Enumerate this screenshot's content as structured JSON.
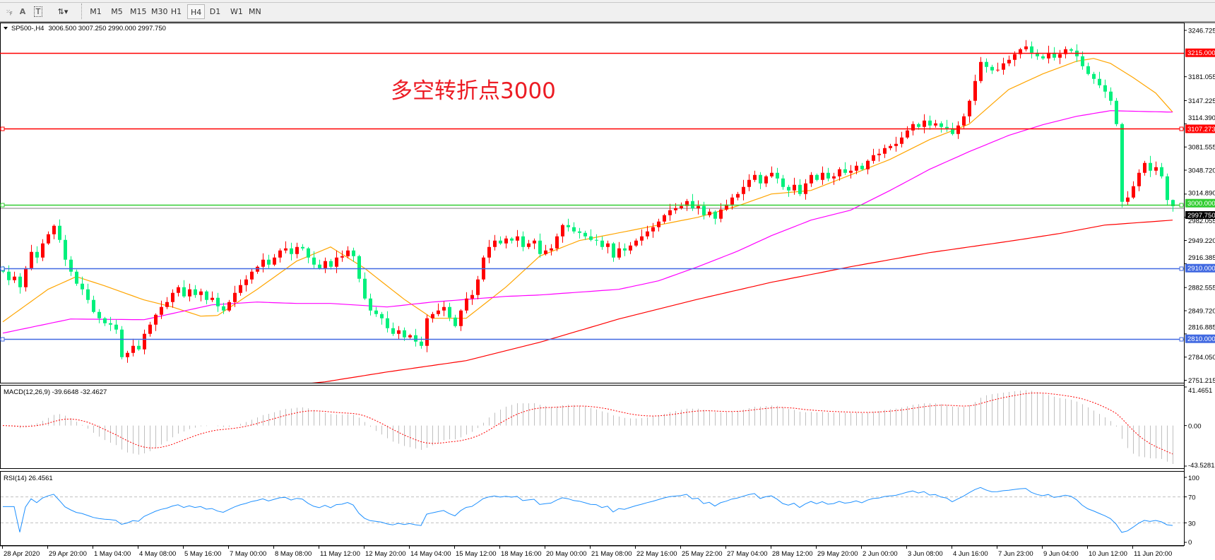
{
  "toolbar": {
    "tools": [
      {
        "name": "grid-tool",
        "label": "F"
      },
      {
        "name": "text-tool",
        "label": "A"
      },
      {
        "name": "text-label-tool",
        "label": "T"
      },
      {
        "name": "arrows-tool",
        "label": "▾"
      }
    ],
    "timeframes": [
      "M1",
      "M5",
      "M15",
      "M30",
      "H1",
      "H4",
      "D1",
      "W1",
      "MN"
    ],
    "active_timeframe": "H4"
  },
  "chart_header": {
    "symbol": "SP500-,H4",
    "ohlc_text": "3006.500 3007.250 2990.000 2997.750"
  },
  "annotation_text": "多空转折点3000",
  "chart_data": {
    "type": "candlestick",
    "symbol": "SP500-",
    "timeframe": "H4",
    "colors": {
      "up": "#ff0000",
      "down": "#00f07c",
      "ma_fast": "#ffa500",
      "ma_mid": "#ff00ff",
      "ma_slow": "#ff0000",
      "macd_hist": "#c0c0c0",
      "macd_signal": "#ff0000",
      "rsi": "#1e90ff"
    },
    "last_bar": {
      "open": 3006.5,
      "high": 3007.25,
      "low": 2990.0,
      "close": 2997.75
    },
    "close": [
      2905,
      2893,
      2898,
      2883,
      2910,
      2933,
      2925,
      2945,
      2958,
      2970,
      2950,
      2922,
      2905,
      2888,
      2880,
      2865,
      2848,
      2839,
      2832,
      2830,
      2823,
      2784,
      2790,
      2800,
      2795,
      2817,
      2830,
      2844,
      2855,
      2862,
      2875,
      2883,
      2870,
      2880,
      2872,
      2877,
      2865,
      2868,
      2856,
      2850,
      2862,
      2875,
      2886,
      2894,
      2905,
      2912,
      2922,
      2915,
      2925,
      2935,
      2938,
      2930,
      2940,
      2938,
      2925,
      2915,
      2910,
      2920,
      2912,
      2925,
      2927,
      2935,
      2927,
      2895,
      2867,
      2850,
      2845,
      2839,
      2825,
      2817,
      2822,
      2812,
      2815,
      2806,
      2800,
      2839,
      2845,
      2850,
      2855,
      2840,
      2828,
      2850,
      2867,
      2872,
      2894,
      2925,
      2940,
      2949,
      2945,
      2952,
      2949,
      2955,
      2940,
      2945,
      2949,
      2930,
      2935,
      2938,
      2955,
      2971,
      2968,
      2962,
      2960,
      2955,
      2950,
      2949,
      2940,
      2945,
      2925,
      2938,
      2935,
      2942,
      2949,
      2955,
      2962,
      2968,
      2976,
      2985,
      2992,
      2995,
      2998,
      3005,
      2995,
      2998,
      2985,
      2990,
      2980,
      2993,
      3000,
      3010,
      3015,
      3025,
      3035,
      3042,
      3030,
      3040,
      3045,
      3037,
      3025,
      3020,
      3028,
      3015,
      3030,
      3042,
      3035,
      3045,
      3037,
      3040,
      3050,
      3045,
      3048,
      3055,
      3050,
      3062,
      3070,
      3072,
      3080,
      3083,
      3086,
      3095,
      3105,
      3114,
      3110,
      3119,
      3112,
      3115,
      3110,
      3108,
      3100,
      3112,
      3125,
      3147,
      3175,
      3202,
      3195,
      3190,
      3191,
      3200,
      3205,
      3213,
      3220,
      3224,
      3215,
      3210,
      3207,
      3215,
      3208,
      3213,
      3220,
      3218,
      3210,
      3196,
      3185,
      3178,
      3169,
      3160,
      3147,
      3114,
      3004,
      3010,
      3026,
      3045,
      3059,
      3048,
      3053,
      3040,
      3006.5,
      2997.75
    ],
    "moving_averages": [
      {
        "color": "#ffa500",
        "points": [
          [
            0,
            2834
          ],
          [
            8,
            2880
          ],
          [
            13,
            2898
          ],
          [
            18,
            2885
          ],
          [
            25,
            2865
          ],
          [
            30,
            2855
          ],
          [
            35,
            2842
          ],
          [
            38,
            2843
          ],
          [
            45,
            2880
          ],
          [
            52,
            2920
          ],
          [
            58,
            2940
          ],
          [
            64,
            2910
          ],
          [
            71,
            2866
          ],
          [
            76,
            2839
          ],
          [
            82,
            2839
          ],
          [
            89,
            2883
          ],
          [
            95,
            2927
          ],
          [
            102,
            2949
          ],
          [
            109,
            2960
          ],
          [
            116,
            2971
          ],
          [
            123,
            2982
          ],
          [
            130,
            2998
          ],
          [
            136,
            3015
          ],
          [
            143,
            3020
          ],
          [
            150,
            3042
          ],
          [
            157,
            3064
          ],
          [
            164,
            3092
          ],
          [
            171,
            3114
          ],
          [
            178,
            3163
          ],
          [
            184,
            3185
          ],
          [
            190,
            3203
          ],
          [
            193,
            3207
          ],
          [
            196,
            3200
          ],
          [
            200,
            3180
          ],
          [
            204,
            3158
          ],
          [
            207,
            3131
          ]
        ]
      },
      {
        "color": "#ff00ff",
        "points": [
          [
            0,
            2818
          ],
          [
            12,
            2838
          ],
          [
            25,
            2837
          ],
          [
            37,
            2858
          ],
          [
            45,
            2862
          ],
          [
            52,
            2860
          ],
          [
            58,
            2860
          ],
          [
            68,
            2855
          ],
          [
            76,
            2862
          ],
          [
            89,
            2870
          ],
          [
            95,
            2872
          ],
          [
            109,
            2880
          ],
          [
            116,
            2892
          ],
          [
            123,
            2912
          ],
          [
            130,
            2934
          ],
          [
            136,
            2956
          ],
          [
            143,
            2978
          ],
          [
            150,
            2992
          ],
          [
            157,
            3020
          ],
          [
            164,
            3050
          ],
          [
            171,
            3075
          ],
          [
            178,
            3098
          ],
          [
            184,
            3113
          ],
          [
            190,
            3125
          ],
          [
            196,
            3133
          ],
          [
            201,
            3132
          ],
          [
            207,
            3131
          ]
        ]
      },
      {
        "color": "#ff0000",
        "points": [
          [
            52,
            2745
          ],
          [
            57,
            2749
          ],
          [
            68,
            2763
          ],
          [
            82,
            2779
          ],
          [
            95,
            2805
          ],
          [
            109,
            2838
          ],
          [
            123,
            2866
          ],
          [
            136,
            2890
          ],
          [
            150,
            2912
          ],
          [
            164,
            2932
          ],
          [
            178,
            2948
          ],
          [
            187,
            2959
          ],
          [
            195,
            2971
          ],
          [
            207,
            2978
          ]
        ]
      }
    ],
    "horizontal_levels": [
      {
        "price": 3215.0,
        "label": "3215.000",
        "color": "#ff0000"
      },
      {
        "price": 3107.273,
        "label": "3107.273",
        "color": "#ff0000"
      },
      {
        "price": 3000.0,
        "label": "3000.000",
        "color": "#32cd32"
      },
      {
        "price": 2910.0,
        "label": "2910.000",
        "color": "#4169e1"
      },
      {
        "price": 2810.0,
        "label": "2810.000",
        "color": "#4169e1"
      }
    ],
    "bid_line": {
      "price": 2997.75,
      "label": "2997.750"
    },
    "price_axis": {
      "ticks": [
        "3246.725",
        "3181.055",
        "3147.225",
        "3114.390",
        "3081.555",
        "3048.720",
        "3014.890",
        "2982.055",
        "2949.220",
        "2916.385",
        "2882.555",
        "2849.720",
        "2816.885",
        "2784.050",
        "2751.215"
      ],
      "range": [
        2751.215,
        3246.725
      ]
    },
    "time_axis": {
      "labels": [
        "28 Apr 2020",
        "29 Apr 20:00",
        "1 May 04:00",
        "4 May 08:00",
        "5 May 16:00",
        "7 May 00:00",
        "8 May 08:00",
        "11 May 12:00",
        "12 May 20:00",
        "14 May 04:00",
        "15 May 12:00",
        "18 May 16:00",
        "20 May 00:00",
        "21 May 08:00",
        "22 May 16:00",
        "25 May 22:00",
        "27 May 04:00",
        "28 May 12:00",
        "29 May 20:00",
        "2 Jun 00:00",
        "3 Jun 08:00",
        "4 Jun 16:00",
        "7 Jun 23:00",
        "9 Jun 04:00",
        "10 Jun 12:00",
        "11 Jun 20:00"
      ]
    },
    "macd": {
      "label": "MACD(12,26,9) -39.6648 -32.4627",
      "params": [
        12,
        26,
        9
      ],
      "axis_labels": [
        "41.4651",
        "0.00",
        "-43.5281"
      ],
      "range": [
        -43.5281,
        41.4651
      ]
    },
    "rsi": {
      "label": "RSI(14) 26.4561",
      "period": 14,
      "axis_labels": [
        "100",
        "70",
        "30",
        "0"
      ],
      "levels": [
        70,
        30
      ]
    }
  }
}
